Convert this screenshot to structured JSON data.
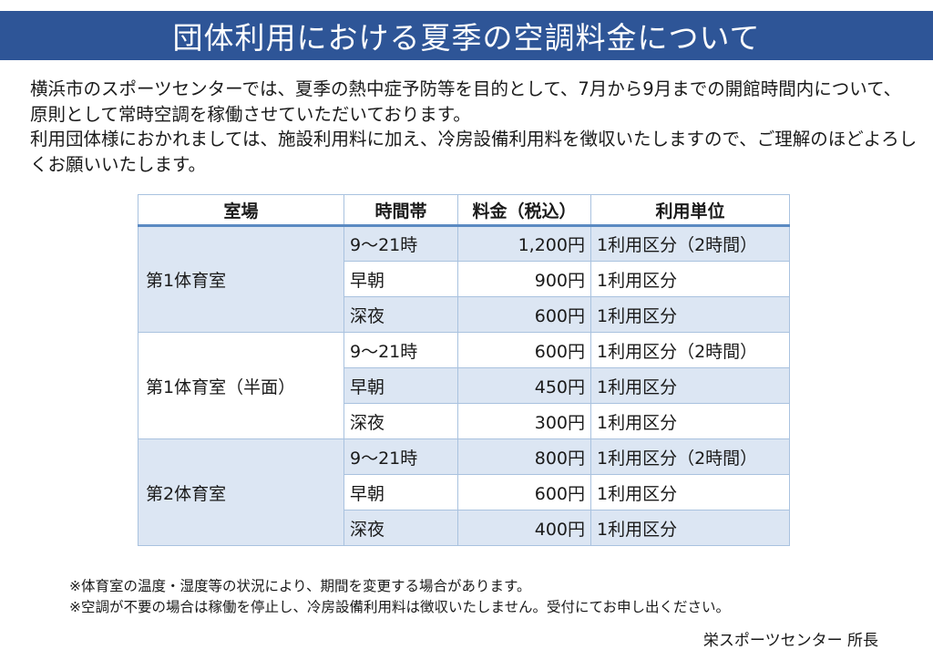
{
  "header": {
    "title": "団体利用における夏季の空調料金について"
  },
  "intro": {
    "paragraph1": "横浜市のスポーツセンターでは、夏季の熱中症予防等を目的として、7月から9月までの開館時間内について、原則として常時空調を稼働させていただいております。",
    "paragraph2": "利用団体様におかれましては、施設利用料に加え、冷房設備利用料を徴収いたしますので、ご理解のほどよろしくお願いいたします。"
  },
  "table": {
    "headers": [
      "室場",
      "時間帯",
      "料金（税込）",
      "利用単位"
    ],
    "groups": [
      {
        "room": "第1体育室",
        "rows": [
          {
            "time": "9～21時",
            "price": "1,200円",
            "unit": "1利用区分（2時間）"
          },
          {
            "time": "早朝",
            "price": "900円",
            "unit": "1利用区分"
          },
          {
            "time": "深夜",
            "price": "600円",
            "unit": "1利用区分"
          }
        ]
      },
      {
        "room": "第1体育室（半面）",
        "rows": [
          {
            "time": "9～21時",
            "price": "600円",
            "unit": "1利用区分（2時間）"
          },
          {
            "time": "早朝",
            "price": "450円",
            "unit": "1利用区分"
          },
          {
            "time": "深夜",
            "price": "300円",
            "unit": "1利用区分"
          }
        ]
      },
      {
        "room": "第2体育室",
        "rows": [
          {
            "time": "9～21時",
            "price": "800円",
            "unit": "1利用区分（2時間）"
          },
          {
            "time": "早朝",
            "price": "600円",
            "unit": "1利用区分"
          },
          {
            "time": "深夜",
            "price": "400円",
            "unit": "1利用区分"
          }
        ]
      }
    ]
  },
  "notes": [
    "※体育室の温度・湿度等の状況により、期間を変更する場合があります。",
    "※空調が不要の場合は稼働を停止し、冷房設備利用料は徴収いたしません。受付にてお申し出ください。"
  ],
  "signature": "栄スポーツセンター 所長",
  "colors": {
    "banner": "#2e5597",
    "row_shade": "#dce6f3",
    "border": "#a9c2df"
  }
}
